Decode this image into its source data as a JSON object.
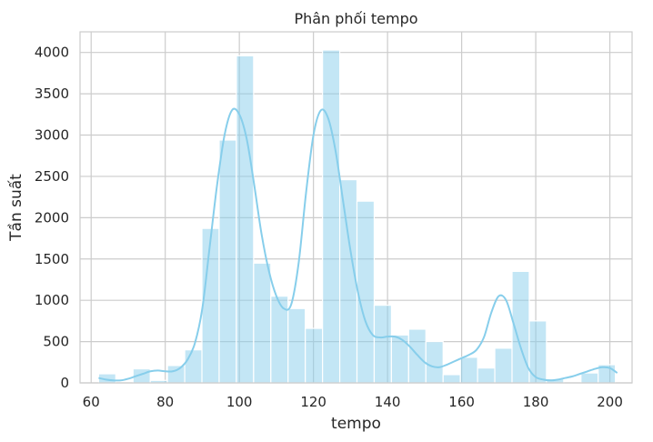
{
  "chart_data": {
    "type": "bar",
    "title": "Phân phối tempo",
    "xlabel": "tempo",
    "ylabel": "Tần suất",
    "xlim": [
      57,
      206
    ],
    "ylim": [
      0,
      4250
    ],
    "xticks": [
      60,
      80,
      100,
      120,
      140,
      160,
      180,
      200
    ],
    "yticks": [
      0,
      500,
      1000,
      1500,
      2000,
      2500,
      3000,
      3500,
      4000
    ],
    "grid": true,
    "legend": "none",
    "bin_edges": [
      62,
      66.65,
      71.3,
      75.95,
      80.6,
      85.25,
      89.9,
      94.55,
      99.2,
      103.85,
      108.5,
      113.15,
      117.8,
      122.45,
      127.1,
      131.75,
      136.4,
      141.05,
      145.7,
      150.35,
      155.0,
      159.65,
      164.3,
      168.95,
      173.6,
      178.25,
      182.9,
      187.55,
      192.2,
      196.85,
      201.5
    ],
    "counts": [
      110,
      0,
      170,
      30,
      210,
      400,
      1870,
      2940,
      3960,
      1450,
      1050,
      900,
      660,
      4030,
      2460,
      2200,
      940,
      580,
      650,
      500,
      100,
      310,
      180,
      420,
      1350,
      750,
      50,
      0,
      120,
      220
    ],
    "kde": {
      "x": [
        62,
        64,
        66,
        68,
        70,
        72,
        74,
        76,
        78,
        80,
        82,
        84,
        86,
        88,
        90,
        92,
        94,
        96,
        98,
        100,
        102,
        104,
        106,
        108,
        110,
        112,
        114,
        116,
        118,
        120,
        122,
        124,
        126,
        128,
        130,
        132,
        134,
        136,
        138,
        140,
        142,
        144,
        146,
        148,
        150,
        152,
        154,
        156,
        158,
        160,
        162,
        164,
        166,
        168,
        170,
        172,
        174,
        176,
        178,
        180,
        182,
        184,
        186,
        188,
        190,
        192,
        194,
        196,
        198,
        200,
        202
      ],
      "y": [
        60,
        40,
        30,
        30,
        50,
        80,
        110,
        140,
        150,
        140,
        140,
        180,
        280,
        480,
        900,
        1650,
        2400,
        3000,
        3300,
        3250,
        2950,
        2400,
        1800,
        1350,
        1050,
        900,
        950,
        1450,
        2300,
        3000,
        3300,
        3200,
        2800,
        2200,
        1600,
        1100,
        750,
        580,
        550,
        560,
        560,
        520,
        440,
        340,
        250,
        200,
        190,
        220,
        260,
        300,
        340,
        400,
        550,
        850,
        1050,
        1000,
        720,
        420,
        180,
        70,
        40,
        30,
        40,
        60,
        80,
        110,
        140,
        170,
        190,
        180,
        120
      ]
    },
    "colors": {
      "bar_fill": "#87CEEB",
      "bar_opacity": 0.5,
      "bar_edge": "#ffffff",
      "kde_line": "#87CEEB",
      "grid": "#cccccc",
      "frame": "#cccccc",
      "text": "#262626"
    }
  }
}
